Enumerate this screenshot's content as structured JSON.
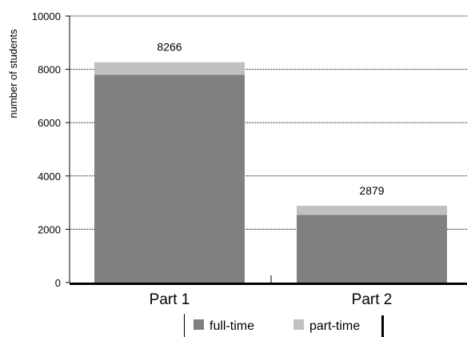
{
  "chart_data": {
    "type": "bar",
    "stacked": true,
    "categories": [
      "Part 1",
      "Part 2"
    ],
    "series": [
      {
        "name": "full-time",
        "values": [
          7800,
          2540
        ]
      },
      {
        "name": "part-time",
        "values": [
          466,
          339
        ]
      }
    ],
    "totals_labels": [
      "8266",
      "2879"
    ],
    "title": "",
    "xlabel": "",
    "ylabel": "number of students",
    "ylim": [
      0,
      10000
    ],
    "yticks": [
      "0",
      "2000",
      "4000",
      "6000",
      "8000",
      "10000"
    ],
    "grid": true,
    "legend_position": "bottom",
    "colors": {
      "full-time": "#808080",
      "part-time": "#c0c0c0",
      "grid": "#000000",
      "axis": "#000000"
    }
  }
}
